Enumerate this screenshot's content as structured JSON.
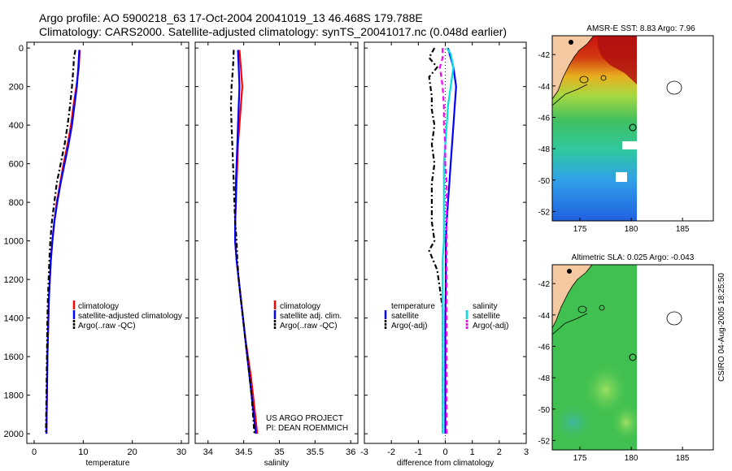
{
  "header": {
    "line1": "Argo profile: AO 5900218_63 17-Oct-2004 20041019_13 46.468S 179.788E",
    "line2": "Climatology: CARS2000. Satellite-adjusted climatology: synTS_20041017.nc (0.048d earlier)"
  },
  "colors": {
    "climatology": "#ff0000",
    "satellite": "#0000ff",
    "argo": "#000000",
    "sal_satellite": "#00e0e0",
    "sal_argo": "#ff00ff"
  },
  "chart_data": [
    {
      "type": "line",
      "id": "temperature",
      "xlabel": "temperature",
      "ylabel": "",
      "xlim": [
        -1.5,
        31.5
      ],
      "ylim": [
        2050,
        -30
      ],
      "xticks": [
        0,
        10,
        20,
        30
      ],
      "yticks": [
        0,
        200,
        400,
        600,
        800,
        1000,
        1200,
        1400,
        1600,
        1800,
        2000
      ],
      "legend": [
        "climatology",
        "satellite-adjusted climatology",
        "Argo(..raw -QC)"
      ],
      "series": [
        {
          "name": "climatology",
          "color": "#ff0000",
          "dash": "",
          "points": [
            [
              9.3,
              10
            ],
            [
              9.1,
              100
            ],
            [
              8.6,
              200
            ],
            [
              8.0,
              300
            ],
            [
              7.5,
              400
            ],
            [
              6.8,
              500
            ],
            [
              6.0,
              600
            ],
            [
              5.3,
              700
            ],
            [
              4.6,
              800
            ],
            [
              4.1,
              900
            ],
            [
              3.7,
              1000
            ],
            [
              3.4,
              1100
            ],
            [
              3.2,
              1200
            ],
            [
              3.0,
              1300
            ],
            [
              2.9,
              1400
            ],
            [
              2.8,
              1500
            ],
            [
              2.7,
              1600
            ],
            [
              2.65,
              1700
            ],
            [
              2.6,
              1800
            ],
            [
              2.55,
              1900
            ],
            [
              2.5,
              2000
            ]
          ]
        },
        {
          "name": "satellite-adjusted climatology",
          "color": "#0000ff",
          "dash": "",
          "points": [
            [
              9.2,
              10
            ],
            [
              9.0,
              100
            ],
            [
              8.7,
              200
            ],
            [
              8.2,
              300
            ],
            [
              7.7,
              400
            ],
            [
              7.0,
              500
            ],
            [
              6.2,
              600
            ],
            [
              5.4,
              700
            ],
            [
              4.7,
              800
            ],
            [
              4.1,
              900
            ],
            [
              3.7,
              1000
            ],
            [
              3.4,
              1100
            ],
            [
              3.2,
              1200
            ],
            [
              3.0,
              1300
            ],
            [
              2.9,
              1400
            ],
            [
              2.8,
              1500
            ],
            [
              2.7,
              1600
            ],
            [
              2.65,
              1700
            ],
            [
              2.6,
              1800
            ],
            [
              2.55,
              1900
            ],
            [
              2.5,
              2000
            ]
          ]
        },
        {
          "name": "Argo(..raw -QC)",
          "color": "#000000",
          "dash": "6,3,2,3",
          "points": [
            [
              8.4,
              10
            ],
            [
              8.1,
              50
            ],
            [
              8.0,
              100
            ],
            [
              7.7,
              200
            ],
            [
              7.3,
              300
            ],
            [
              6.8,
              400
            ],
            [
              6.2,
              500
            ],
            [
              5.4,
              600
            ],
            [
              4.6,
              700
            ],
            [
              4.1,
              800
            ],
            [
              3.6,
              900
            ],
            [
              3.3,
              1000
            ],
            [
              3.1,
              1100
            ],
            [
              2.95,
              1200
            ],
            [
              2.8,
              1300
            ],
            [
              2.7,
              1400
            ],
            [
              2.65,
              1500
            ],
            [
              2.6,
              1600
            ],
            [
              2.55,
              1700
            ],
            [
              2.5,
              1800
            ],
            [
              2.45,
              1900
            ],
            [
              2.4,
              2000
            ]
          ]
        }
      ]
    },
    {
      "type": "line",
      "id": "salinity",
      "xlabel": "salinity",
      "ylabel": "",
      "xlim": [
        33.82,
        36.1
      ],
      "ylim": [
        2050,
        -30
      ],
      "xticks": [
        34,
        34.5,
        35,
        35.5,
        36
      ],
      "yticks": [
        0,
        200,
        400,
        600,
        800,
        1000,
        1200,
        1400,
        1600,
        1800,
        2000
      ],
      "legend": [
        "climatology",
        "satellite adj. clim.",
        "Argo(..raw -QC)"
      ],
      "annotation": [
        "US ARGO PROJECT",
        "PI: DEAN ROEMMICH"
      ],
      "series": [
        {
          "name": "climatology",
          "color": "#ff0000",
          "dash": "",
          "points": [
            [
              34.44,
              10
            ],
            [
              34.46,
              100
            ],
            [
              34.48,
              200
            ],
            [
              34.46,
              300
            ],
            [
              34.44,
              400
            ],
            [
              34.42,
              500
            ],
            [
              34.41,
              600
            ],
            [
              34.4,
              700
            ],
            [
              34.39,
              800
            ],
            [
              34.38,
              900
            ],
            [
              34.38,
              1000
            ],
            [
              34.4,
              1100
            ],
            [
              34.43,
              1200
            ],
            [
              34.46,
              1300
            ],
            [
              34.49,
              1400
            ],
            [
              34.52,
              1500
            ],
            [
              34.56,
              1600
            ],
            [
              34.6,
              1700
            ],
            [
              34.63,
              1800
            ],
            [
              34.66,
              1900
            ],
            [
              34.69,
              2000
            ]
          ]
        },
        {
          "name": "satellite adj. clim.",
          "color": "#0000ff",
          "dash": "",
          "points": [
            [
              34.42,
              10
            ],
            [
              34.43,
              100
            ],
            [
              34.44,
              200
            ],
            [
              34.43,
              300
            ],
            [
              34.42,
              400
            ],
            [
              34.41,
              500
            ],
            [
              34.4,
              600
            ],
            [
              34.39,
              700
            ],
            [
              34.39,
              800
            ],
            [
              34.38,
              900
            ],
            [
              34.38,
              1000
            ],
            [
              34.4,
              1100
            ],
            [
              34.43,
              1200
            ],
            [
              34.46,
              1300
            ],
            [
              34.49,
              1400
            ],
            [
              34.52,
              1500
            ],
            [
              34.55,
              1600
            ],
            [
              34.58,
              1700
            ],
            [
              34.61,
              1800
            ],
            [
              34.64,
              1900
            ],
            [
              34.67,
              2000
            ]
          ]
        },
        {
          "name": "Argo(..raw -QC)",
          "color": "#000000",
          "dash": "6,3,2,3",
          "points": [
            [
              34.36,
              10
            ],
            [
              34.35,
              100
            ],
            [
              34.33,
              200
            ],
            [
              34.32,
              300
            ],
            [
              34.33,
              400
            ],
            [
              34.34,
              500
            ],
            [
              34.35,
              600
            ],
            [
              34.36,
              700
            ],
            [
              34.37,
              800
            ],
            [
              34.38,
              900
            ],
            [
              34.4,
              1000
            ],
            [
              34.41,
              1100
            ],
            [
              34.43,
              1200
            ],
            [
              34.46,
              1300
            ],
            [
              34.49,
              1400
            ],
            [
              34.52,
              1500
            ],
            [
              34.55,
              1600
            ],
            [
              34.58,
              1700
            ],
            [
              34.61,
              1800
            ],
            [
              34.63,
              1900
            ],
            [
              34.65,
              2000
            ]
          ]
        }
      ]
    },
    {
      "type": "line",
      "id": "difference",
      "xlabel": "difference from climatology",
      "ylabel": "",
      "xlim": [
        -3,
        3
      ],
      "ylim": [
        2050,
        -30
      ],
      "xticks": [
        -3,
        -2,
        -1,
        0,
        1,
        2,
        3
      ],
      "yticks": [
        0,
        200,
        400,
        600,
        800,
        1000,
        1200,
        1400,
        1600,
        1800,
        2000
      ],
      "legend_groups": [
        {
          "heading": "temperature",
          "items": [
            "satellite",
            "Argo(-adj)"
          ]
        },
        {
          "heading": "salinity",
          "items": [
            "satellite",
            "Argo(-adj)"
          ]
        }
      ],
      "series": [
        {
          "name": "temperature satellite",
          "color": "#0000ff",
          "dash": "",
          "points": [
            [
              0.1,
              0
            ],
            [
              0.2,
              50
            ],
            [
              0.3,
              100
            ],
            [
              0.4,
              200
            ],
            [
              0.35,
              300
            ],
            [
              0.3,
              400
            ],
            [
              0.25,
              500
            ],
            [
              0.2,
              600
            ],
            [
              0.15,
              700
            ],
            [
              0.1,
              800
            ],
            [
              0.05,
              900
            ],
            [
              0.02,
              1000
            ],
            [
              0.02,
              1200
            ],
            [
              0.0,
              1400
            ],
            [
              0.0,
              1600
            ],
            [
              0.0,
              1800
            ],
            [
              0.0,
              2000
            ]
          ]
        },
        {
          "name": "temperature Argo(-adj)",
          "color": "#000000",
          "dash": "6,3,2,3",
          "points": [
            [
              -0.4,
              0
            ],
            [
              -0.6,
              50
            ],
            [
              -0.3,
              100
            ],
            [
              -0.6,
              150
            ],
            [
              -0.5,
              250
            ],
            [
              -0.5,
              320
            ],
            [
              -0.4,
              400
            ],
            [
              -0.5,
              500
            ],
            [
              -0.4,
              600
            ],
            [
              -0.5,
              700
            ],
            [
              -0.5,
              800
            ],
            [
              -0.5,
              900
            ],
            [
              -0.4,
              1000
            ],
            [
              -0.6,
              1050
            ],
            [
              -0.3,
              1150
            ],
            [
              -0.2,
              1250
            ],
            [
              -0.1,
              1350
            ],
            [
              -0.1,
              1500
            ],
            [
              -0.1,
              1700
            ],
            [
              -0.1,
              1900
            ],
            [
              -0.1,
              2000
            ]
          ]
        },
        {
          "name": "salinity satellite",
          "color": "#00e0e0",
          "dash": "",
          "points": [
            [
              0.05,
              0
            ],
            [
              0.2,
              30
            ],
            [
              0.3,
              100
            ],
            [
              0.2,
              200
            ],
            [
              0.1,
              300
            ],
            [
              0.05,
              400
            ],
            [
              0.0,
              500
            ],
            [
              -0.05,
              600
            ],
            [
              -0.05,
              700
            ],
            [
              -0.05,
              800
            ],
            [
              -0.05,
              900
            ],
            [
              -0.05,
              1000
            ],
            [
              -0.1,
              1100
            ],
            [
              -0.1,
              1300
            ],
            [
              -0.1,
              1600
            ],
            [
              -0.1,
              2000
            ]
          ]
        },
        {
          "name": "salinity Argo(-adj)",
          "color": "#ff00ff",
          "dash": "6,4",
          "points": [
            [
              -0.1,
              0
            ],
            [
              -0.1,
              50
            ],
            [
              -0.2,
              100
            ],
            [
              -0.1,
              200
            ],
            [
              -0.05,
              300
            ],
            [
              -0.05,
              400
            ],
            [
              0.0,
              500
            ],
            [
              0.0,
              600
            ],
            [
              0.05,
              700
            ],
            [
              0.05,
              800
            ],
            [
              0.05,
              900
            ],
            [
              0.05,
              1000
            ],
            [
              0.05,
              1100
            ],
            [
              0.05,
              1300
            ],
            [
              0.05,
              1600
            ],
            [
              0.05,
              2000
            ]
          ]
        }
      ]
    }
  ],
  "maps": [
    {
      "title": "AMSR-E SST: 8.83 Argo: 7.96",
      "xticks": [
        175,
        180,
        185
      ],
      "yticks": [
        -42,
        -44,
        -46,
        -48,
        -50,
        -52
      ]
    },
    {
      "title": "Altimetric SLA: 0.025 Argo: -0.043",
      "xticks": [
        175,
        180,
        185
      ],
      "yticks": [
        -42,
        -44,
        -46,
        -48,
        -50,
        -52
      ]
    }
  ],
  "footer": {
    "vertical": "CSIRO 04-Aug-2005 18:25:50"
  }
}
